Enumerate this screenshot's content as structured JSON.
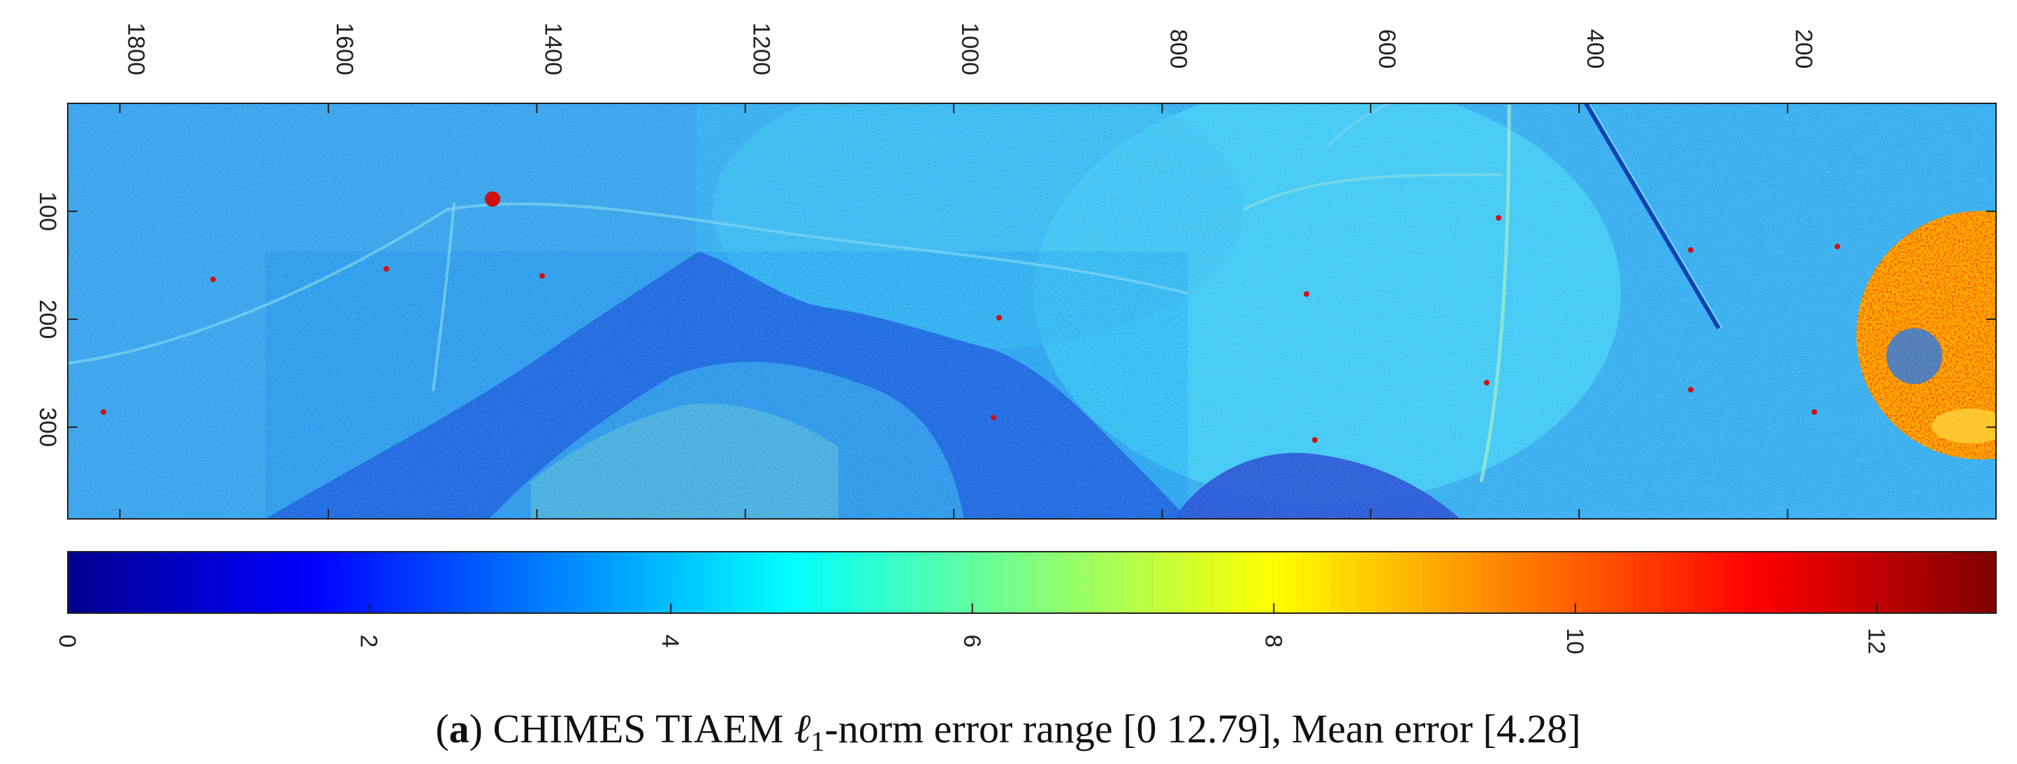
{
  "chart_data": {
    "type": "heatmap",
    "title": "",
    "xlabel": "",
    "ylabel": "",
    "x_axis": {
      "position": "top",
      "reversed": true,
      "range": [
        0,
        1850
      ],
      "ticks": [
        1800,
        1600,
        1400,
        1200,
        1000,
        800,
        600,
        400,
        200
      ],
      "tick_labels": [
        "1800",
        "1600",
        "1400",
        "1200",
        "1000",
        "800",
        "600",
        "400",
        "200"
      ]
    },
    "y_axis": {
      "reversed": true,
      "range": [
        0,
        385
      ],
      "ticks": [
        100,
        200,
        300
      ],
      "tick_labels": [
        "100",
        "200",
        "300"
      ]
    },
    "colorbar": {
      "colormap": "jet",
      "range": [
        0,
        12.79
      ],
      "ticks": [
        0,
        2,
        4,
        6,
        8,
        10,
        12
      ],
      "tick_labels": [
        "0",
        "2",
        "4",
        "6",
        "8",
        "10",
        "12"
      ]
    },
    "value_range": [
      0,
      12.79
    ],
    "mean_error": 4.28,
    "grid": false
  },
  "caption": {
    "label": "a",
    "text_before": " CHIMES TIAEM ",
    "symbol": "ℓ",
    "subscript": "1",
    "text_after": "-norm error range [0 12.79], Mean error [4.28]"
  },
  "colors": {
    "background": "#ffffff",
    "axis": "#222222",
    "jet": [
      "#00008f",
      "#0000ff",
      "#00ffff",
      "#ffff00",
      "#ff0000",
      "#800000"
    ]
  }
}
